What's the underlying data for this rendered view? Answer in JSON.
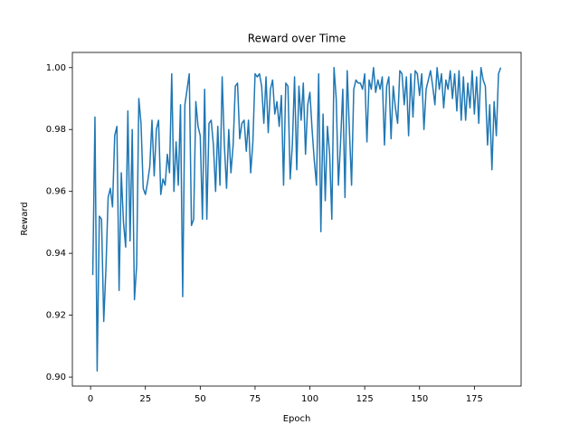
{
  "chart_data": {
    "type": "line",
    "title": "Reward over Time",
    "x_label": "Epoch",
    "y_label": "Reward",
    "x": [
      1,
      2,
      3,
      4,
      5,
      6,
      7,
      8,
      9,
      10,
      11,
      12,
      13,
      14,
      15,
      16,
      17,
      18,
      19,
      20,
      21,
      22,
      23,
      24,
      25,
      26,
      27,
      28,
      29,
      30,
      31,
      32,
      33,
      34,
      35,
      36,
      37,
      38,
      39,
      40,
      41,
      42,
      43,
      44,
      45,
      46,
      47,
      48,
      49,
      50,
      51,
      52,
      53,
      54,
      55,
      56,
      57,
      58,
      59,
      60,
      61,
      62,
      63,
      64,
      65,
      66,
      67,
      68,
      69,
      70,
      71,
      72,
      73,
      74,
      75,
      76,
      77,
      78,
      79,
      80,
      81,
      82,
      83,
      84,
      85,
      86,
      87,
      88,
      89,
      90,
      91,
      92,
      93,
      94,
      95,
      96,
      97,
      98,
      99,
      100,
      101,
      102,
      103,
      104,
      105,
      106,
      107,
      108,
      109,
      110,
      111,
      112,
      113,
      114,
      115,
      116,
      117,
      118,
      119,
      120,
      121,
      122,
      123,
      124,
      125,
      126,
      127,
      128,
      129,
      130,
      131,
      132,
      133,
      134,
      135,
      136,
      137,
      138,
      139,
      140,
      141,
      142,
      143,
      144,
      145,
      146,
      147,
      148,
      149,
      150,
      151,
      152,
      153,
      154,
      155,
      156,
      157,
      158,
      159,
      160,
      161,
      162,
      163,
      164,
      165,
      166,
      167,
      168,
      169,
      170,
      171,
      172,
      173,
      174,
      175,
      176,
      177,
      178,
      179,
      180,
      181,
      182,
      183,
      184,
      185,
      186,
      187
    ],
    "series": [
      {
        "name": "Reward",
        "color": "#1f77b4",
        "values": [
          0.933,
          0.984,
          0.902,
          0.952,
          0.951,
          0.918,
          0.935,
          0.958,
          0.961,
          0.955,
          0.978,
          0.981,
          0.928,
          0.966,
          0.95,
          0.942,
          0.986,
          0.944,
          0.98,
          0.925,
          0.936,
          0.99,
          0.982,
          0.961,
          0.959,
          0.963,
          0.968,
          0.983,
          0.965,
          0.98,
          0.983,
          0.959,
          0.964,
          0.962,
          0.972,
          0.966,
          0.998,
          0.96,
          0.976,
          0.962,
          0.988,
          0.926,
          0.988,
          0.993,
          0.998,
          0.949,
          0.951,
          0.989,
          0.981,
          0.978,
          0.951,
          0.993,
          0.951,
          0.982,
          0.983,
          0.975,
          0.96,
          0.981,
          0.962,
          0.997,
          0.975,
          0.961,
          0.98,
          0.966,
          0.975,
          0.994,
          0.995,
          0.977,
          0.982,
          0.983,
          0.973,
          0.983,
          0.966,
          0.976,
          0.998,
          0.997,
          0.998,
          0.994,
          0.982,
          0.997,
          0.979,
          0.993,
          0.996,
          0.985,
          0.989,
          0.981,
          0.991,
          0.962,
          0.995,
          0.994,
          0.964,
          0.975,
          0.997,
          0.967,
          0.994,
          0.983,
          0.995,
          0.972,
          0.988,
          0.992,
          0.98,
          0.97,
          0.962,
          0.998,
          0.947,
          0.985,
          0.957,
          0.981,
          0.972,
          0.951,
          1.0,
          0.99,
          0.962,
          0.976,
          0.993,
          0.958,
          0.999,
          0.98,
          0.962,
          0.993,
          0.996,
          0.995,
          0.995,
          0.993,
          0.998,
          0.976,
          0.996,
          0.993,
          1.0,
          0.992,
          0.996,
          0.993,
          0.997,
          0.975,
          0.994,
          0.997,
          0.977,
          0.994,
          0.987,
          0.982,
          0.999,
          0.998,
          0.988,
          0.997,
          0.978,
          0.998,
          0.984,
          0.999,
          0.998,
          0.991,
          0.998,
          0.98,
          0.993,
          0.996,
          0.999,
          0.994,
          0.988,
          1.0,
          0.993,
          0.998,
          0.987,
          0.996,
          0.993,
          0.999,
          0.99,
          0.998,
          0.986,
          0.999,
          0.983,
          0.997,
          0.983,
          0.995,
          0.987,
          0.999,
          0.985,
          0.997,
          0.982,
          1.0,
          0.996,
          0.994,
          0.975,
          0.988,
          0.967,
          0.989,
          0.978,
          0.998,
          1.0
        ]
      }
    ],
    "xlim": [
      -8.3,
      196.3
    ],
    "ylim": [
      0.8971,
      1.0049
    ],
    "xticks": [
      0,
      25,
      50,
      75,
      100,
      125,
      150,
      175
    ],
    "yticks": [
      {
        "value": 0.9,
        "label": "0.90"
      },
      0.92,
      0.94,
      0.96,
      0.98,
      {
        "value": 1,
        "label": "1.00"
      }
    ]
  }
}
